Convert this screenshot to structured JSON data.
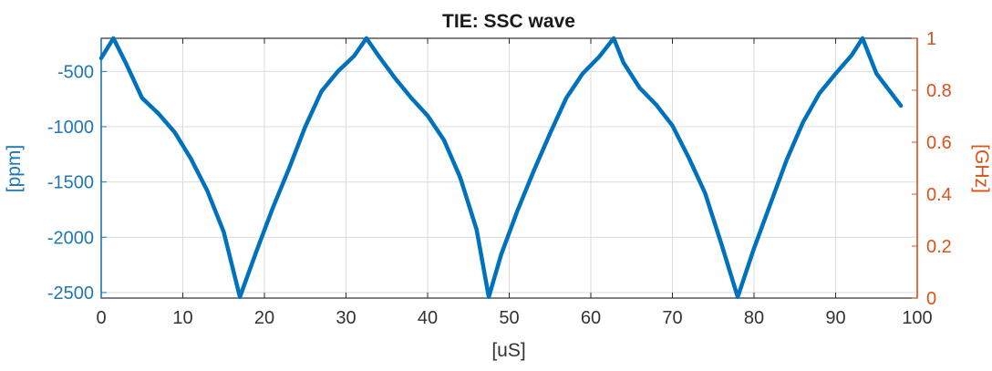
{
  "chart_data": {
    "type": "line",
    "title": "TIE: SSC wave",
    "xlabel": "[uS]",
    "ylabel_left": "[ppm]",
    "ylabel_right": "[GHz]",
    "xlim": [
      0,
      100
    ],
    "ylim_left": [
      -2550,
      -200
    ],
    "ylim_right": [
      0,
      1
    ],
    "x_ticks": [
      0,
      10,
      20,
      30,
      40,
      50,
      60,
      70,
      80,
      90,
      100
    ],
    "y_left_ticks": [
      -500,
      -1000,
      -1500,
      -2000,
      -2500
    ],
    "y_right_ticks": [
      0,
      0.2,
      0.4,
      0.6,
      0.8,
      1
    ],
    "grid": true,
    "colors": {
      "left_axis": "#1f77b4",
      "right_axis": "#d95319",
      "line": "#0072bd",
      "title": "#1a1a1a"
    },
    "series": [
      {
        "axis": "left",
        "x": [
          0,
          1.5,
          3,
          5,
          7,
          9,
          11,
          13,
          15,
          17,
          19,
          21,
          23,
          25,
          27,
          29,
          31,
          32.5,
          34,
          36,
          38,
          40,
          42,
          44,
          46,
          47.5,
          49,
          51,
          53,
          55,
          57,
          59,
          61,
          62.8,
          64,
          66,
          68,
          70,
          72,
          74,
          76,
          78,
          80,
          82,
          84,
          86,
          88,
          90,
          92,
          93.3,
          95,
          98
        ],
        "y": [
          -380,
          -200,
          -420,
          -740,
          -880,
          -1050,
          -1290,
          -1580,
          -1950,
          -2540,
          -2130,
          -1740,
          -1380,
          -1000,
          -680,
          -500,
          -360,
          -200,
          -360,
          -560,
          -740,
          -900,
          -1120,
          -1460,
          -1930,
          -2540,
          -2160,
          -1760,
          -1400,
          -1060,
          -740,
          -520,
          -370,
          -200,
          -420,
          -650,
          -800,
          -990,
          -1280,
          -1600,
          -2060,
          -2540,
          -2100,
          -1700,
          -1300,
          -960,
          -700,
          -520,
          -350,
          -200,
          -520,
          -810
        ]
      }
    ]
  }
}
